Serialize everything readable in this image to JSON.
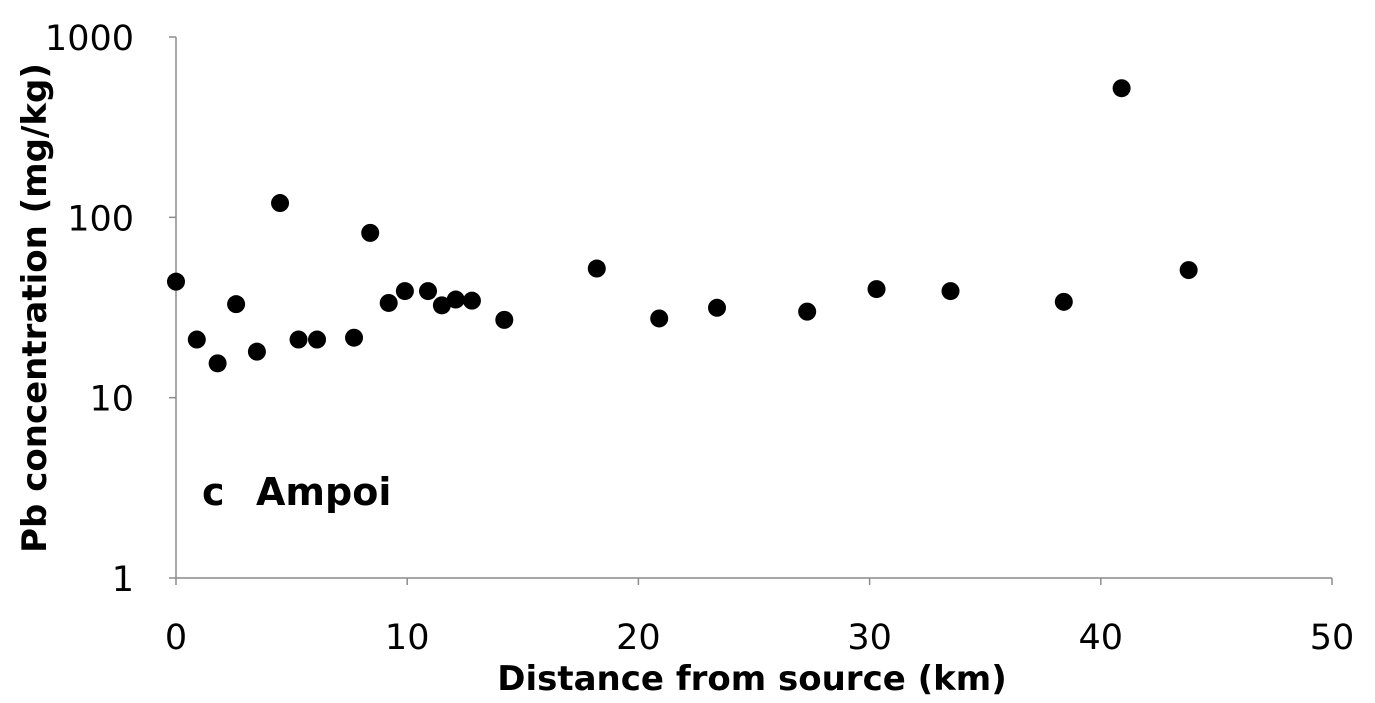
{
  "chart_data": {
    "type": "scatter",
    "xlabel": "Distance from source (km)",
    "ylabel": "Pb concentration (mg/kg)",
    "annotation_letter": "c",
    "annotation_name": "Ampoi",
    "xlim": [
      0,
      50
    ],
    "ylim": [
      1,
      1000
    ],
    "y_scale": "log",
    "grid": false,
    "legend": "none",
    "x_ticks": [
      "0",
      "10",
      "20",
      "30",
      "40",
      "50"
    ],
    "y_ticks": [
      "1",
      "10",
      "100",
      "1000"
    ],
    "marker_color": "#000000",
    "points": [
      {
        "x": 0.0,
        "y": 44
      },
      {
        "x": 0.9,
        "y": 21
      },
      {
        "x": 1.8,
        "y": 15.5
      },
      {
        "x": 2.6,
        "y": 33
      },
      {
        "x": 3.5,
        "y": 18
      },
      {
        "x": 4.5,
        "y": 120
      },
      {
        "x": 5.3,
        "y": 21
      },
      {
        "x": 6.1,
        "y": 21
      },
      {
        "x": 7.7,
        "y": 21.5
      },
      {
        "x": 8.4,
        "y": 82
      },
      {
        "x": 9.2,
        "y": 33.5
      },
      {
        "x": 9.9,
        "y": 39
      },
      {
        "x": 10.9,
        "y": 39
      },
      {
        "x": 11.5,
        "y": 32.5
      },
      {
        "x": 12.1,
        "y": 35
      },
      {
        "x": 12.8,
        "y": 34.5
      },
      {
        "x": 14.2,
        "y": 27
      },
      {
        "x": 18.2,
        "y": 52
      },
      {
        "x": 20.9,
        "y": 27.5
      },
      {
        "x": 23.4,
        "y": 31.5
      },
      {
        "x": 27.3,
        "y": 30
      },
      {
        "x": 30.3,
        "y": 40
      },
      {
        "x": 33.5,
        "y": 39
      },
      {
        "x": 38.4,
        "y": 34
      },
      {
        "x": 40.9,
        "y": 520
      },
      {
        "x": 43.8,
        "y": 51
      }
    ]
  }
}
